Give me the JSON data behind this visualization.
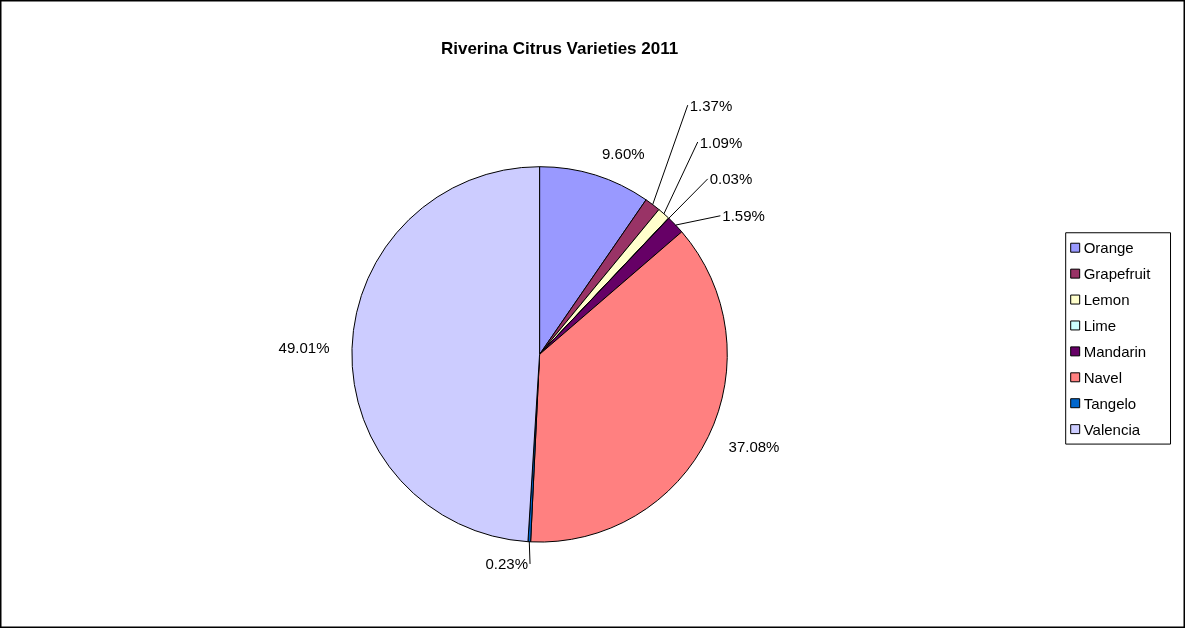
{
  "chart_data": {
    "type": "pie",
    "title": "Riverina Citrus Varieties 2011",
    "categories": [
      "Orange",
      "Grapefruit",
      "Lemon",
      "Lime",
      "Mandarin",
      "Navel",
      "Tangelo",
      "Valencia"
    ],
    "values": [
      9.6,
      1.37,
      1.09,
      0.03,
      1.59,
      37.08,
      0.23,
      49.01
    ],
    "value_labels": [
      "9.60%",
      "1.37%",
      "1.09%",
      "0.03%",
      "1.59%",
      "37.08%",
      "0.23%",
      "49.01%"
    ],
    "colors": [
      "#9999ff",
      "#993366",
      "#ffffcc",
      "#ccffff",
      "#660066",
      "#ff8080",
      "#0066cc",
      "#ccccff"
    ],
    "legend": "right"
  }
}
